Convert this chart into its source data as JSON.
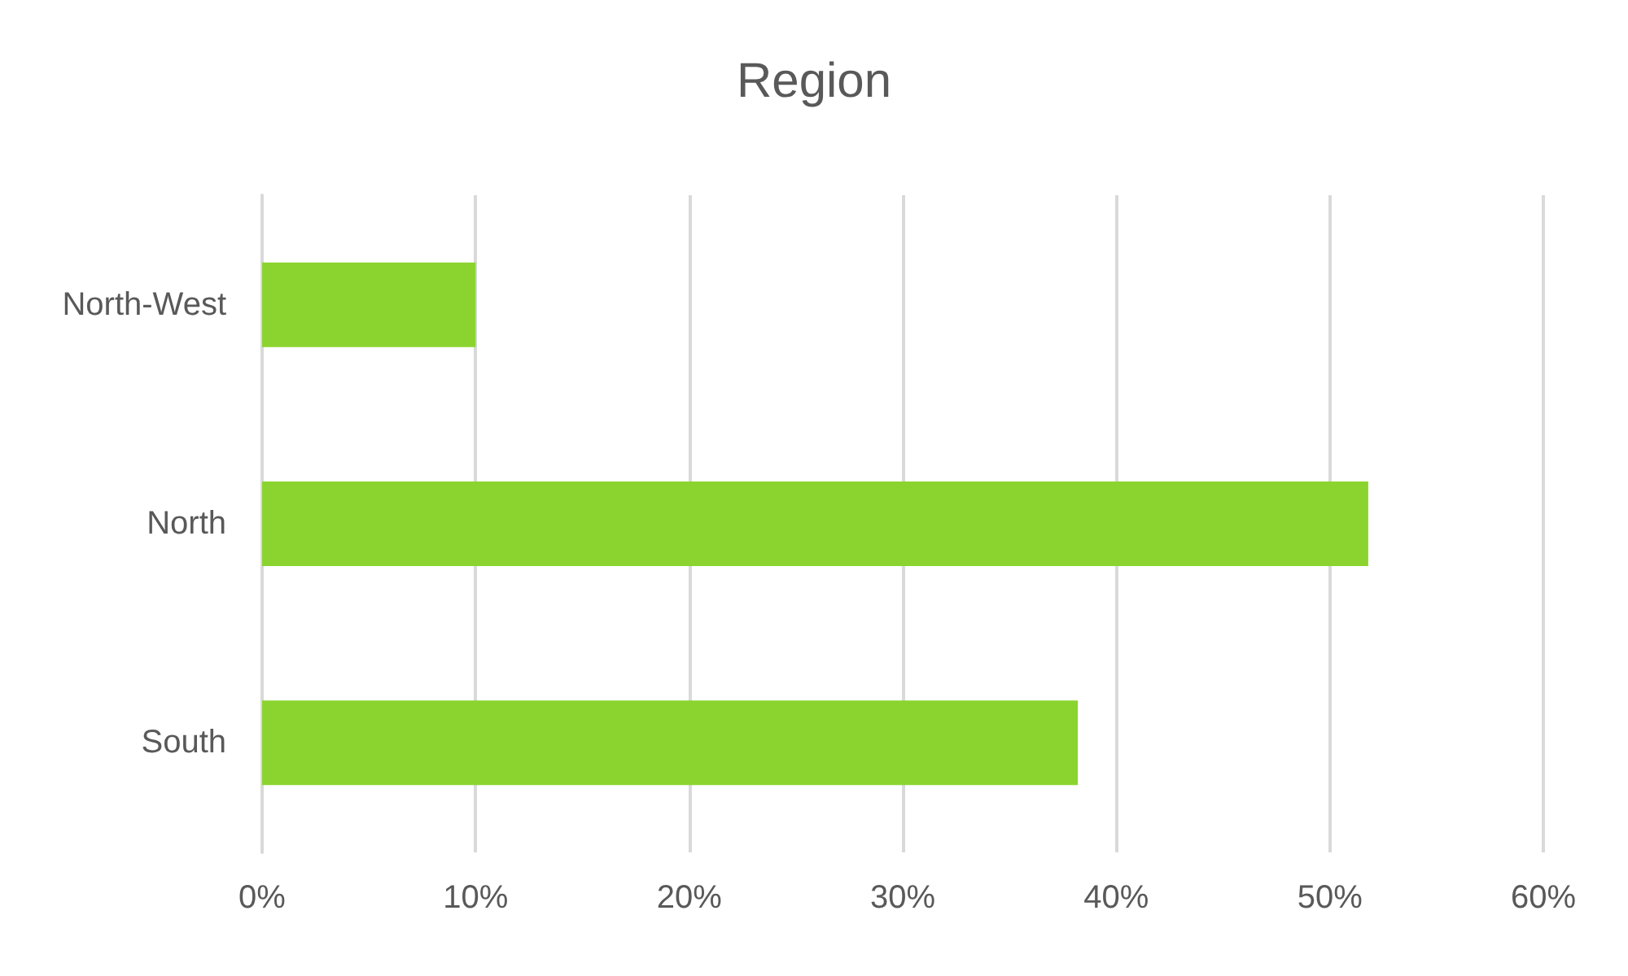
{
  "chart_data": {
    "type": "bar",
    "orientation": "horizontal",
    "title": "Region",
    "categories": [
      "North-West",
      "North",
      "South"
    ],
    "values": [
      10,
      51.8,
      38.2
    ],
    "color": "#8bd42f",
    "xlim": [
      0,
      60
    ],
    "xticks": [
      {
        "value": 0,
        "label": "0%"
      },
      {
        "value": 10,
        "label": "10%"
      },
      {
        "value": 20,
        "label": "20%"
      },
      {
        "value": 30,
        "label": "30%"
      },
      {
        "value": 40,
        "label": "40%"
      },
      {
        "value": 50,
        "label": "50%"
      },
      {
        "value": 60,
        "label": "60%"
      }
    ],
    "grid": "x"
  }
}
